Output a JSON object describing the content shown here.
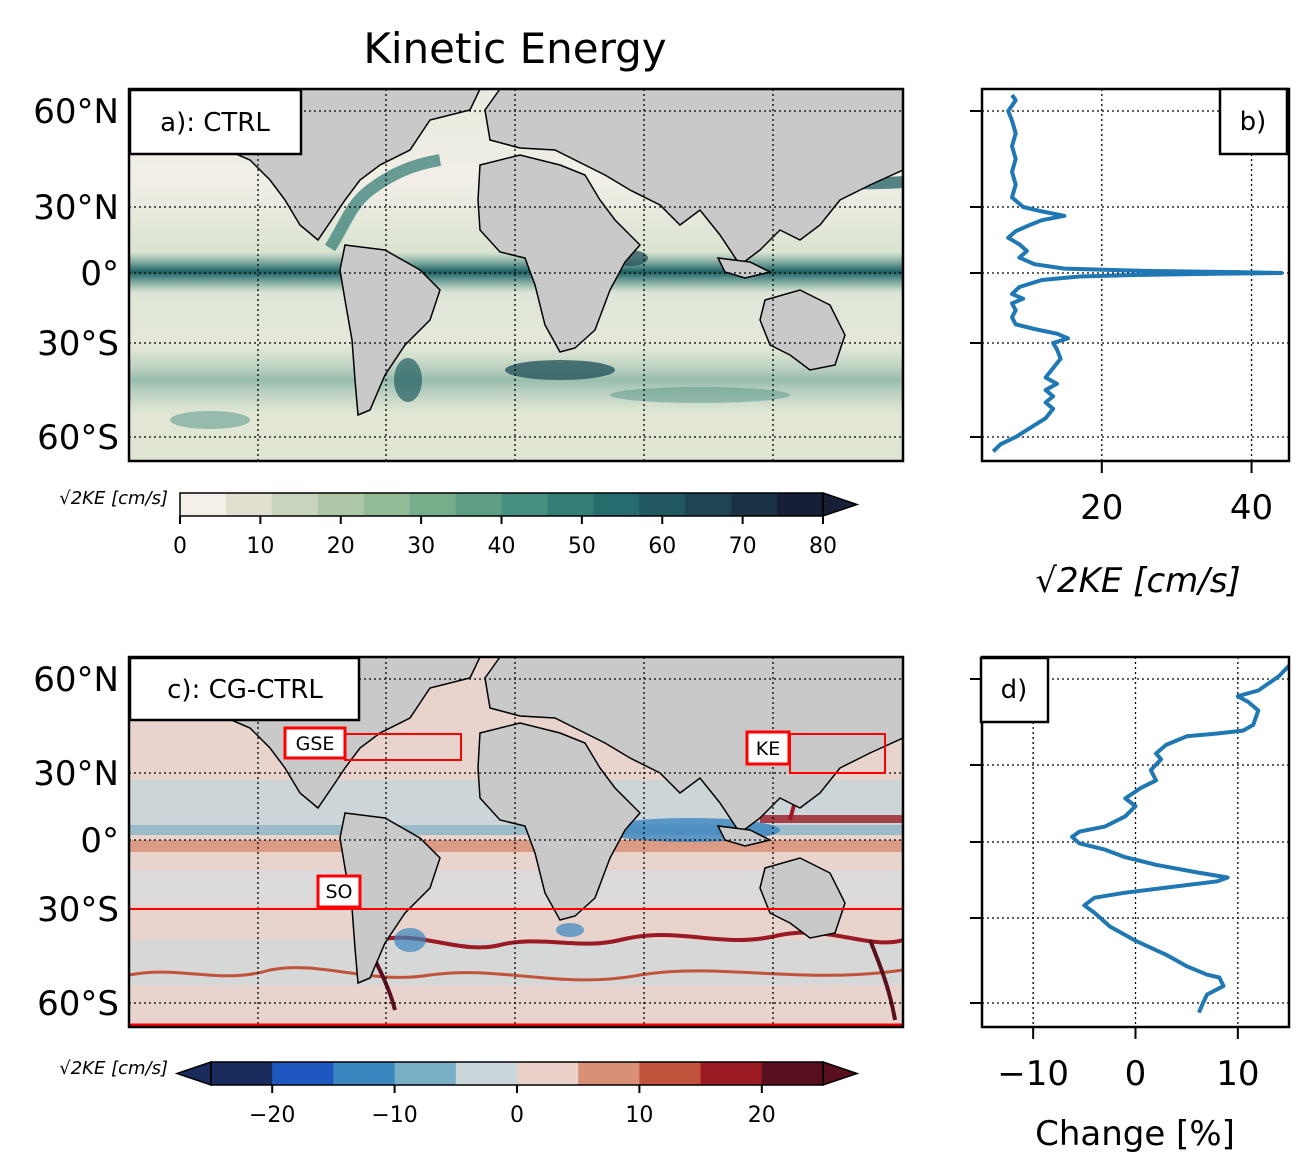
{
  "figure": {
    "title": "Kinetic Energy"
  },
  "panels": {
    "a": {
      "label": "a): CTRL",
      "colorbar_label": "√2KE [cm/s]",
      "lat_ticks": [
        "60°N",
        "30°N",
        "0°",
        "30°S",
        "60°S"
      ]
    },
    "b": {
      "label": "b)",
      "xlabel": "√2KE [cm/s]",
      "x_ticks": [
        "20",
        "40"
      ]
    },
    "c": {
      "label": "c): CG-CTRL",
      "colorbar_label": "√2KE [cm/s]",
      "lat_ticks": [
        "60°N",
        "30°N",
        "0°",
        "30°S",
        "60°S"
      ],
      "regions": [
        "GSE",
        "KE",
        "SO"
      ]
    },
    "d": {
      "label": "d)",
      "xlabel": "Change [%]",
      "x_ticks": [
        "−10",
        "0",
        "10"
      ]
    }
  },
  "colorbars": {
    "a": {
      "ticks": [
        "0",
        "10",
        "20",
        "30",
        "40",
        "50",
        "60",
        "70",
        "80"
      ],
      "colors": [
        "#f4efe8",
        "#e2ded0",
        "#c9d4bc",
        "#aec7a6",
        "#93bb95",
        "#78ad8b",
        "#5f9f86",
        "#47907f",
        "#337f78",
        "#266b6d",
        "#21575f",
        "#1f4452",
        "#1b3144",
        "#171f38"
      ]
    },
    "c": {
      "ticks": [
        "−20",
        "−10",
        "0",
        "10",
        "20"
      ],
      "colors": [
        "#1a2b5e",
        "#1f57c0",
        "#3a86bf",
        "#7ab0c7",
        "#c9d6da",
        "#ead1c9",
        "#d99077",
        "#c0533a",
        "#9b1a24",
        "#5a0f1f"
      ]
    }
  },
  "chart_data": [
    {
      "panel": "b",
      "type": "line",
      "title": "",
      "xlabel": "√2KE [cm/s]",
      "ylabel": "",
      "xlim": [
        4,
        45
      ],
      "ylim": [
        -70,
        66
      ],
      "grid": true,
      "series": [
        {
          "color": "#1f77b4",
          "points": [
            {
              "x": 5.5,
              "y": -66
            },
            {
              "x": 6.5,
              "y": -63
            },
            {
              "x": 8.5,
              "y": -60
            },
            {
              "x": 10.5,
              "y": -57
            },
            {
              "x": 12.5,
              "y": -54
            },
            {
              "x": 13.5,
              "y": -51
            },
            {
              "x": 12.5,
              "y": -49
            },
            {
              "x": 13.5,
              "y": -47
            },
            {
              "x": 12.5,
              "y": -45
            },
            {
              "x": 14,
              "y": -43
            },
            {
              "x": 12.5,
              "y": -41
            },
            {
              "x": 13.5,
              "y": -38
            },
            {
              "x": 14.5,
              "y": -35
            },
            {
              "x": 14,
              "y": -32
            },
            {
              "x": 13.5,
              "y": -30
            },
            {
              "x": 15.5,
              "y": -28
            },
            {
              "x": 14,
              "y": -26
            },
            {
              "x": 11,
              "y": -24
            },
            {
              "x": 8.5,
              "y": -22
            },
            {
              "x": 8,
              "y": -19
            },
            {
              "x": 8.5,
              "y": -16
            },
            {
              "x": 8,
              "y": -13
            },
            {
              "x": 9.5,
              "y": -11
            },
            {
              "x": 8,
              "y": -9
            },
            {
              "x": 9,
              "y": -6
            },
            {
              "x": 12,
              "y": -3
            },
            {
              "x": 17,
              "y": -1.5
            },
            {
              "x": 25,
              "y": -0.8
            },
            {
              "x": 35,
              "y": -0.3
            },
            {
              "x": 44,
              "y": 0
            },
            {
              "x": 38,
              "y": 0.4
            },
            {
              "x": 25,
              "y": 1
            },
            {
              "x": 15,
              "y": 2
            },
            {
              "x": 11,
              "y": 4
            },
            {
              "x": 9,
              "y": 7
            },
            {
              "x": 10,
              "y": 10
            },
            {
              "x": 9,
              "y": 13
            },
            {
              "x": 7.5,
              "y": 16
            },
            {
              "x": 8.5,
              "y": 19
            },
            {
              "x": 10.5,
              "y": 22
            },
            {
              "x": 12,
              "y": 24
            },
            {
              "x": 15,
              "y": 26
            },
            {
              "x": 12,
              "y": 28
            },
            {
              "x": 9.5,
              "y": 30
            },
            {
              "x": 8,
              "y": 33
            },
            {
              "x": 8.5,
              "y": 37
            },
            {
              "x": 8,
              "y": 41
            },
            {
              "x": 8.5,
              "y": 45
            },
            {
              "x": 8,
              "y": 49
            },
            {
              "x": 8.5,
              "y": 53
            },
            {
              "x": 8,
              "y": 57
            },
            {
              "x": 7.5,
              "y": 60
            },
            {
              "x": 8.5,
              "y": 64
            },
            {
              "x": 8,
              "y": 66
            }
          ]
        }
      ]
    },
    {
      "panel": "d",
      "type": "line",
      "title": "",
      "xlabel": "Change [%]",
      "ylabel": "",
      "xlim": [
        -15,
        15
      ],
      "ylim": [
        -70,
        66
      ],
      "grid": true,
      "series": [
        {
          "color": "#1f77b4",
          "points": [
            {
              "x": 6.2,
              "y": -64
            },
            {
              "x": 6.6,
              "y": -60
            },
            {
              "x": 7,
              "y": -57
            },
            {
              "x": 8.6,
              "y": -54
            },
            {
              "x": 8.2,
              "y": -51
            },
            {
              "x": 7,
              "y": -50
            },
            {
              "x": 5,
              "y": -47
            },
            {
              "x": 3,
              "y": -43
            },
            {
              "x": 0,
              "y": -38
            },
            {
              "x": -2.5,
              "y": -33
            },
            {
              "x": -4,
              "y": -28
            },
            {
              "x": -5,
              "y": -25
            },
            {
              "x": -4,
              "y": -22
            },
            {
              "x": -1,
              "y": -20
            },
            {
              "x": 3,
              "y": -18
            },
            {
              "x": 8,
              "y": -15.5
            },
            {
              "x": 9,
              "y": -14
            },
            {
              "x": 6,
              "y": -12
            },
            {
              "x": 2,
              "y": -9
            },
            {
              "x": -1,
              "y": -6
            },
            {
              "x": -3,
              "y": -3
            },
            {
              "x": -5.5,
              "y": -0.5
            },
            {
              "x": -6.2,
              "y": 2
            },
            {
              "x": -5.5,
              "y": 4
            },
            {
              "x": -3,
              "y": 6
            },
            {
              "x": -1,
              "y": 10
            },
            {
              "x": 0,
              "y": 14
            },
            {
              "x": -1,
              "y": 17
            },
            {
              "x": 0.5,
              "y": 21
            },
            {
              "x": 2,
              "y": 24
            },
            {
              "x": 1.5,
              "y": 28
            },
            {
              "x": 2.5,
              "y": 32
            },
            {
              "x": 2,
              "y": 34
            },
            {
              "x": 3,
              "y": 37
            },
            {
              "x": 5,
              "y": 40
            },
            {
              "x": 8,
              "y": 41
            },
            {
              "x": 10.5,
              "y": 42
            },
            {
              "x": 11.5,
              "y": 44
            },
            {
              "x": 12,
              "y": 49
            },
            {
              "x": 11,
              "y": 52
            },
            {
              "x": 10,
              "y": 54
            },
            {
              "x": 12,
              "y": 56
            },
            {
              "x": 14,
              "y": 61
            },
            {
              "x": 15,
              "y": 65
            }
          ]
        }
      ]
    }
  ]
}
